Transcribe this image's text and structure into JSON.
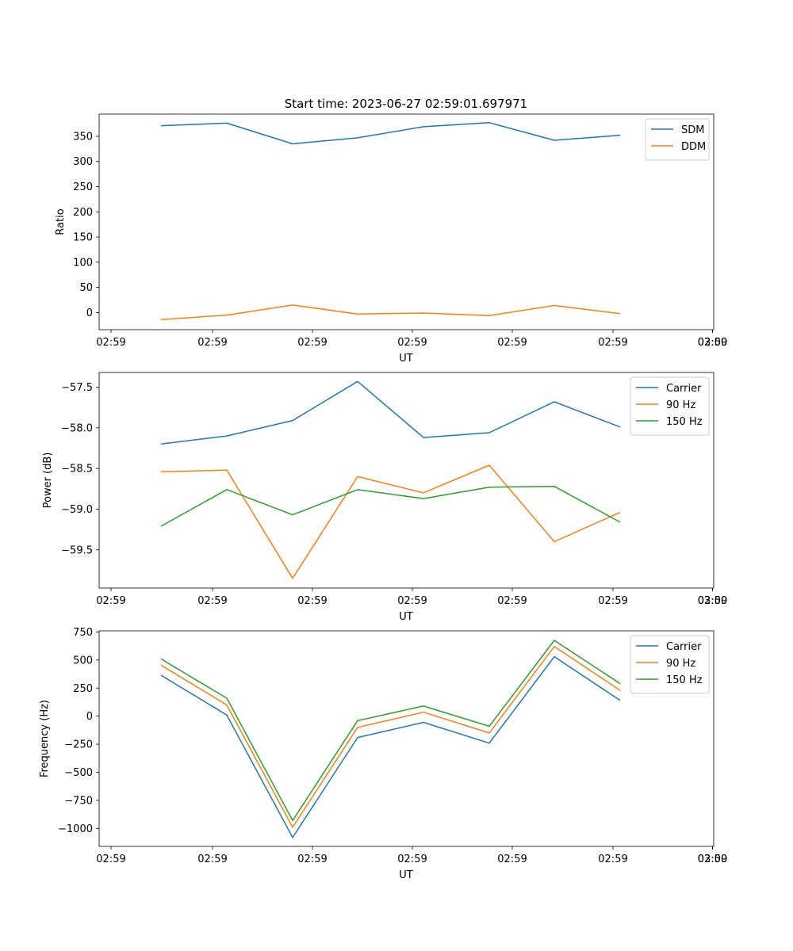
{
  "figure": {
    "title": "Start time: 2023-06-27 02:59:01.697971"
  },
  "chart_data": [
    {
      "type": "line",
      "xlabel": "UT",
      "ylabel": "Ratio",
      "x_tick_labels": [
        "02:59",
        "02:59",
        "02:59",
        "02:59",
        "02:59",
        "02:59",
        "02:59",
        "03:00"
      ],
      "y_ticks": [
        0,
        50,
        100,
        150,
        200,
        250,
        300,
        350
      ],
      "y_tick_labels": [
        "0",
        "50",
        "100",
        "150",
        "200",
        "250",
        "300",
        "350"
      ],
      "ylim": [
        -34,
        394
      ],
      "legend_position": "top-right",
      "series": [
        {
          "name": "SDM",
          "color": "#1f77b4",
          "values": [
            371,
            376,
            335,
            347,
            369,
            377,
            342,
            352
          ]
        },
        {
          "name": "DDM",
          "color": "#ff7f0e",
          "values": [
            -14,
            -5,
            15,
            -3,
            -1,
            -6,
            14,
            -2
          ]
        }
      ]
    },
    {
      "type": "line",
      "xlabel": "UT",
      "ylabel": "Power (dB)",
      "x_tick_labels": [
        "02:59",
        "02:59",
        "02:59",
        "02:59",
        "02:59",
        "02:59",
        "02:59",
        "03:00"
      ],
      "y_ticks": [
        -59.5,
        -59.0,
        -58.5,
        -58.0,
        -57.5
      ],
      "y_tick_labels": [
        "−59.5",
        "−59.0",
        "−58.5",
        "−58.0",
        "−57.5"
      ],
      "ylim": [
        -59.97,
        -57.32
      ],
      "legend_position": "top-right",
      "series": [
        {
          "name": "Carrier",
          "color": "#1f77b4",
          "values": [
            -58.2,
            -58.1,
            -57.91,
            -57.43,
            -58.12,
            -58.06,
            -57.68,
            -57.99
          ]
        },
        {
          "name": "90 Hz",
          "color": "#ff7f0e",
          "values": [
            -58.54,
            -58.52,
            -59.85,
            -58.6,
            -58.8,
            -58.46,
            -59.4,
            -59.04
          ]
        },
        {
          "name": "150 Hz",
          "color": "#2ca02c",
          "values": [
            -59.21,
            -58.76,
            -59.07,
            -58.76,
            -58.87,
            -58.73,
            -58.72,
            -59.16
          ]
        }
      ]
    },
    {
      "type": "line",
      "xlabel": "UT",
      "ylabel": "Frequency (Hz)",
      "x_tick_labels": [
        "02:59",
        "02:59",
        "02:59",
        "02:59",
        "02:59",
        "02:59",
        "02:59",
        "03:00"
      ],
      "y_ticks": [
        -1000,
        -750,
        -500,
        -250,
        0,
        250,
        500,
        750
      ],
      "y_tick_labels": [
        "−1000",
        "−750",
        "−500",
        "−250",
        "0",
        "250",
        "500",
        "750"
      ],
      "ylim": [
        -1160,
        760
      ],
      "legend_position": "top-right",
      "series": [
        {
          "name": "Carrier",
          "color": "#1f77b4",
          "values": [
            365,
            10,
            -1080,
            -190,
            -55,
            -240,
            530,
            140
          ]
        },
        {
          "name": "90 Hz",
          "color": "#ff7f0e",
          "values": [
            455,
            100,
            -990,
            -100,
            35,
            -150,
            620,
            230
          ]
        },
        {
          "name": "150 Hz",
          "color": "#2ca02c",
          "values": [
            510,
            160,
            -930,
            -40,
            90,
            -90,
            675,
            290
          ]
        }
      ]
    }
  ]
}
